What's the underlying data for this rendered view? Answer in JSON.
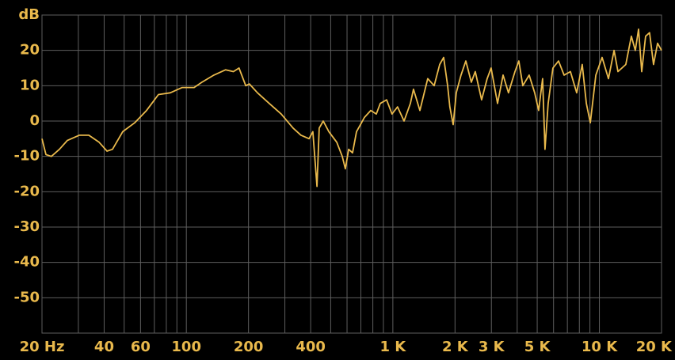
{
  "chart_data": {
    "type": "line",
    "log_x": true,
    "grid": true,
    "xlim": [
      20,
      20000
    ],
    "ylim": [
      -60,
      30
    ],
    "xticks": [
      {
        "value": 20,
        "label": "20 Hz"
      },
      40,
      60,
      100,
      200,
      400,
      {
        "value": 1000,
        "label": "1 K"
      },
      {
        "value": 2000,
        "label": "2 K"
      },
      {
        "value": 3000,
        "label": "3 K"
      },
      {
        "value": 5000,
        "label": "5 K"
      },
      {
        "value": 10000,
        "label": "10 K"
      },
      {
        "value": 20000,
        "label": "20 K"
      }
    ],
    "xgrid_minor": [
      30,
      50,
      70,
      80,
      90,
      300,
      500,
      600,
      700,
      800,
      900,
      4000,
      6000,
      7000,
      8000,
      9000
    ],
    "yticks": [
      {
        "value": 30,
        "label": "dB"
      },
      20,
      10,
      0,
      -10,
      -20,
      -30,
      -40,
      -50
    ],
    "series": [
      {
        "color": "#e9b94c",
        "x": [
          20,
          20.9,
          22.2,
          24.3,
          26.5,
          30.3,
          33.7,
          37.8,
          41.3,
          43.9,
          49.2,
          56.2,
          64.2,
          73.3,
          83.6,
          95.5,
          109,
          119,
          136,
          155,
          169,
          180,
          194,
          202,
          221,
          252,
          288,
          329,
          359,
          393,
          410,
          429,
          440,
          460,
          490,
          535,
          569,
          589,
          611,
          638,
          667,
          697,
          728,
          782,
          832,
          869,
          933,
          991,
          1054,
          1133,
          1216,
          1259,
          1352,
          1476,
          1585,
          1686,
          1762,
          1841,
          1888,
          1959,
          2028,
          2139,
          2256,
          2399,
          2506,
          2690,
          2863,
          2992,
          3213,
          3418,
          3631,
          3902,
          4076,
          4257,
          4571,
          4864,
          5082,
          5309,
          5455,
          5650,
          5958,
          6342,
          6745,
          7244,
          7765,
          8262,
          8650,
          9036,
          9617,
          10310,
          11070,
          11780,
          12300,
          13430,
          14290,
          14930,
          15480,
          16030,
          16750,
          17500,
          18290,
          19130,
          20000
        ],
        "values": [
          -5,
          -9.5,
          -10,
          -8,
          -5.5,
          -4,
          -4,
          -6,
          -8.5,
          -8,
          -3,
          -0.5,
          3,
          7.5,
          8,
          9.5,
          9.5,
          11,
          13,
          14.5,
          14,
          15,
          10,
          10.5,
          8,
          5,
          2,
          -2,
          -4,
          -5,
          -3,
          -18.5,
          -2,
          0,
          -3,
          -6,
          -10,
          -13.5,
          -8,
          -9,
          -3,
          -1,
          1,
          3,
          2,
          5,
          6,
          2,
          4,
          0,
          5,
          9,
          3,
          12,
          10,
          16,
          18,
          10,
          4,
          -1,
          8,
          13,
          17,
          11,
          14,
          6,
          12,
          15,
          5,
          13,
          8,
          14,
          17,
          10,
          13,
          8,
          3,
          12,
          -8,
          5,
          15,
          17,
          13,
          14,
          8,
          16,
          5,
          -0.5,
          13,
          18,
          12,
          20,
          14,
          16,
          24,
          20,
          26,
          14,
          24,
          25,
          16,
          22,
          20
        ]
      }
    ]
  }
}
